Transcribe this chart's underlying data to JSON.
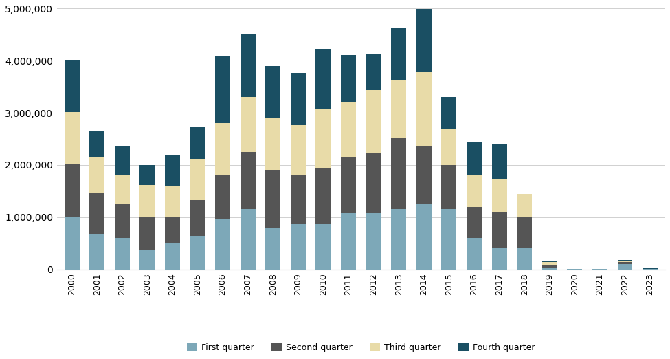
{
  "years": [
    2000,
    2001,
    2002,
    2003,
    2004,
    2005,
    2006,
    2007,
    2008,
    2009,
    2010,
    2011,
    2012,
    2013,
    2014,
    2015,
    2016,
    2017,
    2018,
    2019,
    2020,
    2021,
    2022,
    2023
  ],
  "q1": [
    1000000,
    680000,
    600000,
    380000,
    500000,
    640000,
    950000,
    1150000,
    800000,
    870000,
    870000,
    1070000,
    1080000,
    1150000,
    1240000,
    1150000,
    600000,
    420000,
    400000,
    30000,
    3000,
    3000,
    100000,
    5000
  ],
  "q2": [
    1020000,
    780000,
    650000,
    620000,
    500000,
    680000,
    850000,
    1100000,
    1100000,
    940000,
    1060000,
    1090000,
    1150000,
    1380000,
    1120000,
    850000,
    600000,
    680000,
    600000,
    55000,
    3000,
    3000,
    40000,
    3000
  ],
  "q3": [
    1000000,
    700000,
    560000,
    620000,
    600000,
    800000,
    1000000,
    1050000,
    1000000,
    950000,
    1150000,
    1050000,
    1200000,
    1100000,
    1430000,
    700000,
    620000,
    630000,
    450000,
    60000,
    3000,
    3000,
    25000,
    3000
  ],
  "q4": [
    1000000,
    500000,
    560000,
    380000,
    600000,
    620000,
    1300000,
    1200000,
    1000000,
    1000000,
    1150000,
    900000,
    700000,
    1000000,
    1200000,
    600000,
    620000,
    680000,
    0,
    10000,
    3000,
    3000,
    15000,
    3000
  ],
  "colors": {
    "q1": "#7da8b8",
    "q2": "#555555",
    "q3": "#e8dba8",
    "q4": "#1a4f63"
  },
  "legend_labels": [
    "First quarter",
    "Second quarter",
    "Third quarter",
    "Fourth quarter"
  ],
  "ylim": [
    0,
    5000000
  ],
  "yticks": [
    0,
    1000000,
    2000000,
    3000000,
    4000000,
    5000000
  ],
  "bg_color": "#ffffff",
  "grid_color": "#d0d0d0",
  "figsize": [
    9.75,
    5.22
  ],
  "dpi": 100
}
